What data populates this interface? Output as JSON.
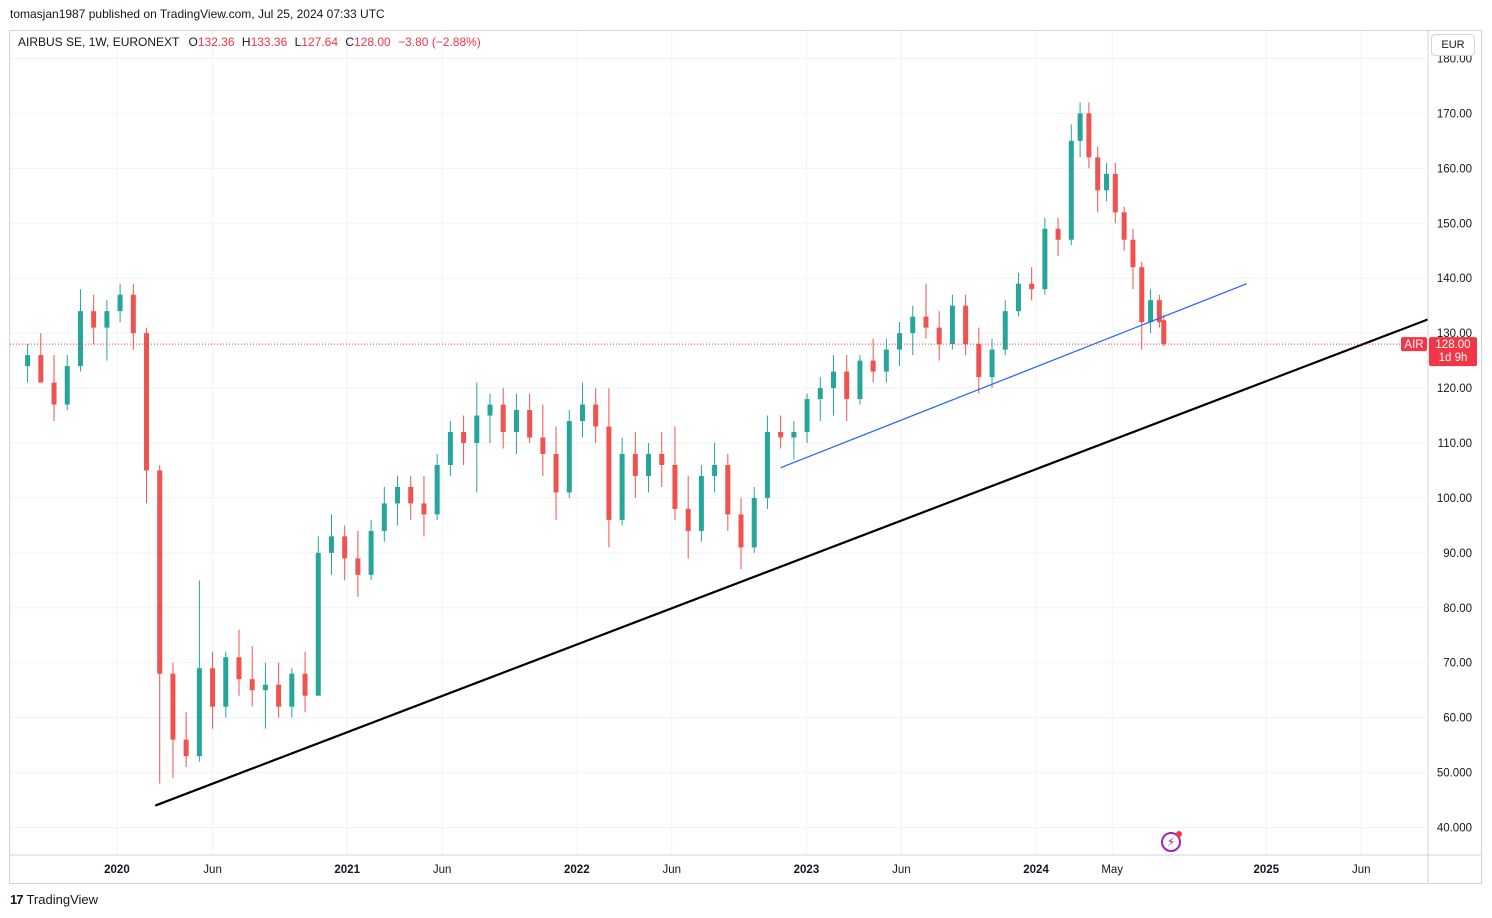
{
  "header": {
    "caption": "tomasjan1987 published on TradingView.com, Jul 25, 2024 07:33 UTC"
  },
  "legend": {
    "symbol": "AIRBUS SE, 1W, EURONEXT",
    "open_label": "O",
    "open": "132.36",
    "high_label": "H",
    "high": "133.36",
    "low_label": "L",
    "low": "127.64",
    "close_label": "C",
    "close": "128.00",
    "change": "−3.80 (−2.88%)"
  },
  "currency": "EUR",
  "price_tag": {
    "ticker": "AIR",
    "price": "128.00",
    "countdown": "1d 9h"
  },
  "brand": {
    "logo": "17",
    "name": "TradingView"
  },
  "colors": {
    "up": "#26a69a",
    "down": "#ef5350",
    "grid": "#f0f3fa",
    "trend_main": "#000000",
    "trend_blue": "#2962ff",
    "last_price": "#f23645"
  },
  "chart_data": {
    "type": "candlestick",
    "symbol": "AIRBUS SE",
    "interval": "1W",
    "ylim": [
      35,
      185
    ],
    "y_ticks": [
      "40.000",
      "50.000",
      "60.00",
      "70.00",
      "80.00",
      "90.00",
      "100.00",
      "110.00",
      "120.00",
      "130.00",
      "140.00",
      "150.00",
      "160.00",
      "170.00",
      "180.00"
    ],
    "x_ticks": [
      {
        "label": "2020",
        "date": "2020-01-01",
        "bold": true
      },
      {
        "label": "Jun",
        "date": "2020-06-01",
        "bold": false
      },
      {
        "label": "2021",
        "date": "2021-01-01",
        "bold": true
      },
      {
        "label": "Jun",
        "date": "2021-06-01",
        "bold": false
      },
      {
        "label": "2022",
        "date": "2022-01-01",
        "bold": true
      },
      {
        "label": "Jun",
        "date": "2022-06-01",
        "bold": false
      },
      {
        "label": "2023",
        "date": "2023-01-01",
        "bold": true
      },
      {
        "label": "Jun",
        "date": "2023-06-01",
        "bold": false
      },
      {
        "label": "2024",
        "date": "2024-01-01",
        "bold": true
      },
      {
        "label": "May",
        "date": "2024-05-01",
        "bold": false
      },
      {
        "label": "2025",
        "date": "2025-01-01",
        "bold": true
      },
      {
        "label": "Jun",
        "date": "2025-06-01",
        "bold": false
      }
    ],
    "xlim": [
      "2019-07-15",
      "2025-09-15"
    ],
    "last_price": 128.0,
    "candles": [
      {
        "d": "2019-08-12",
        "o": 124,
        "h": 128,
        "l": 121,
        "c": 126
      },
      {
        "d": "2019-09-02",
        "o": 126,
        "h": 130,
        "l": 122,
        "c": 121
      },
      {
        "d": "2019-09-23",
        "o": 121,
        "h": 126,
        "l": 114,
        "c": 117
      },
      {
        "d": "2019-10-14",
        "o": 117,
        "h": 126,
        "l": 116,
        "c": 124
      },
      {
        "d": "2019-11-04",
        "o": 124,
        "h": 138,
        "l": 123,
        "c": 134
      },
      {
        "d": "2019-11-25",
        "o": 134,
        "h": 137,
        "l": 128,
        "c": 131
      },
      {
        "d": "2019-12-16",
        "o": 131,
        "h": 136,
        "l": 125,
        "c": 134
      },
      {
        "d": "2020-01-06",
        "o": 134,
        "h": 139,
        "l": 132,
        "c": 137
      },
      {
        "d": "2020-01-27",
        "o": 137,
        "h": 139,
        "l": 127,
        "c": 130
      },
      {
        "d": "2020-02-17",
        "o": 130,
        "h": 131,
        "l": 99,
        "c": 105
      },
      {
        "d": "2020-03-09",
        "o": 105,
        "h": 106,
        "l": 48,
        "c": 68
      },
      {
        "d": "2020-03-30",
        "o": 68,
        "h": 70,
        "l": 49,
        "c": 56
      },
      {
        "d": "2020-04-20",
        "o": 56,
        "h": 61,
        "l": 51,
        "c": 53
      },
      {
        "d": "2020-05-11",
        "o": 53,
        "h": 85,
        "l": 52,
        "c": 69
      },
      {
        "d": "2020-06-01",
        "o": 69,
        "h": 72,
        "l": 58,
        "c": 62
      },
      {
        "d": "2020-06-22",
        "o": 62,
        "h": 72,
        "l": 60,
        "c": 71
      },
      {
        "d": "2020-07-13",
        "o": 71,
        "h": 76,
        "l": 64,
        "c": 67
      },
      {
        "d": "2020-08-03",
        "o": 67,
        "h": 73,
        "l": 62,
        "c": 65
      },
      {
        "d": "2020-08-24",
        "o": 65,
        "h": 70,
        "l": 58,
        "c": 66
      },
      {
        "d": "2020-09-14",
        "o": 66,
        "h": 70,
        "l": 60,
        "c": 62
      },
      {
        "d": "2020-10-05",
        "o": 62,
        "h": 69,
        "l": 60,
        "c": 68
      },
      {
        "d": "2020-10-26",
        "o": 68,
        "h": 72,
        "l": 61,
        "c": 64
      },
      {
        "d": "2020-11-16",
        "o": 64,
        "h": 93,
        "l": 64,
        "c": 90
      },
      {
        "d": "2020-12-07",
        "o": 90,
        "h": 97,
        "l": 86,
        "c": 93
      },
      {
        "d": "2020-12-28",
        "o": 93,
        "h": 95,
        "l": 85,
        "c": 89
      },
      {
        "d": "2021-01-18",
        "o": 89,
        "h": 94,
        "l": 82,
        "c": 86
      },
      {
        "d": "2021-02-08",
        "o": 86,
        "h": 96,
        "l": 85,
        "c": 94
      },
      {
        "d": "2021-03-01",
        "o": 94,
        "h": 102,
        "l": 92,
        "c": 99
      },
      {
        "d": "2021-03-22",
        "o": 99,
        "h": 104,
        "l": 95,
        "c": 102
      },
      {
        "d": "2021-04-12",
        "o": 102,
        "h": 104,
        "l": 96,
        "c": 99
      },
      {
        "d": "2021-05-03",
        "o": 99,
        "h": 104,
        "l": 93,
        "c": 97
      },
      {
        "d": "2021-05-24",
        "o": 97,
        "h": 108,
        "l": 96,
        "c": 106
      },
      {
        "d": "2021-06-14",
        "o": 106,
        "h": 114,
        "l": 104,
        "c": 112
      },
      {
        "d": "2021-07-05",
        "o": 112,
        "h": 115,
        "l": 106,
        "c": 110
      },
      {
        "d": "2021-07-26",
        "o": 110,
        "h": 121,
        "l": 101,
        "c": 115
      },
      {
        "d": "2021-08-16",
        "o": 115,
        "h": 119,
        "l": 110,
        "c": 117
      },
      {
        "d": "2021-09-06",
        "o": 117,
        "h": 120,
        "l": 109,
        "c": 112
      },
      {
        "d": "2021-09-27",
        "o": 112,
        "h": 119,
        "l": 108,
        "c": 116
      },
      {
        "d": "2021-10-18",
        "o": 116,
        "h": 119,
        "l": 110,
        "c": 111
      },
      {
        "d": "2021-11-08",
        "o": 111,
        "h": 117,
        "l": 104,
        "c": 108
      },
      {
        "d": "2021-11-29",
        "o": 108,
        "h": 113,
        "l": 96,
        "c": 101
      },
      {
        "d": "2021-12-20",
        "o": 101,
        "h": 116,
        "l": 100,
        "c": 114
      },
      {
        "d": "2022-01-10",
        "o": 114,
        "h": 121,
        "l": 111,
        "c": 117
      },
      {
        "d": "2022-01-31",
        "o": 117,
        "h": 120,
        "l": 110,
        "c": 113
      },
      {
        "d": "2022-02-21",
        "o": 113,
        "h": 120,
        "l": 91,
        "c": 96
      },
      {
        "d": "2022-03-14",
        "o": 96,
        "h": 111,
        "l": 95,
        "c": 108
      },
      {
        "d": "2022-04-04",
        "o": 108,
        "h": 112,
        "l": 100,
        "c": 104
      },
      {
        "d": "2022-04-25",
        "o": 104,
        "h": 110,
        "l": 101,
        "c": 108
      },
      {
        "d": "2022-05-16",
        "o": 108,
        "h": 112,
        "l": 102,
        "c": 106
      },
      {
        "d": "2022-06-06",
        "o": 106,
        "h": 113,
        "l": 96,
        "c": 98
      },
      {
        "d": "2022-06-27",
        "o": 98,
        "h": 104,
        "l": 89,
        "c": 94
      },
      {
        "d": "2022-07-18",
        "o": 94,
        "h": 106,
        "l": 92,
        "c": 104
      },
      {
        "d": "2022-08-08",
        "o": 104,
        "h": 110,
        "l": 101,
        "c": 106
      },
      {
        "d": "2022-08-29",
        "o": 106,
        "h": 108,
        "l": 94,
        "c": 97
      },
      {
        "d": "2022-09-19",
        "o": 97,
        "h": 100,
        "l": 87,
        "c": 91
      },
      {
        "d": "2022-10-10",
        "o": 91,
        "h": 102,
        "l": 90,
        "c": 100
      },
      {
        "d": "2022-10-31",
        "o": 100,
        "h": 115,
        "l": 98,
        "c": 112
      },
      {
        "d": "2022-11-21",
        "o": 112,
        "h": 115,
        "l": 109,
        "c": 111
      },
      {
        "d": "2022-12-12",
        "o": 111,
        "h": 114,
        "l": 107,
        "c": 112
      },
      {
        "d": "2023-01-02",
        "o": 112,
        "h": 119,
        "l": 110,
        "c": 118
      },
      {
        "d": "2023-01-23",
        "o": 118,
        "h": 122,
        "l": 114,
        "c": 120
      },
      {
        "d": "2023-02-13",
        "o": 120,
        "h": 126,
        "l": 115,
        "c": 123
      },
      {
        "d": "2023-03-06",
        "o": 123,
        "h": 126,
        "l": 114,
        "c": 118
      },
      {
        "d": "2023-03-27",
        "o": 118,
        "h": 126,
        "l": 117,
        "c": 125
      },
      {
        "d": "2023-04-17",
        "o": 125,
        "h": 129,
        "l": 121,
        "c": 123
      },
      {
        "d": "2023-05-08",
        "o": 123,
        "h": 129,
        "l": 121,
        "c": 127
      },
      {
        "d": "2023-05-29",
        "o": 127,
        "h": 132,
        "l": 124,
        "c": 130
      },
      {
        "d": "2023-06-19",
        "o": 130,
        "h": 135,
        "l": 126,
        "c": 133
      },
      {
        "d": "2023-07-10",
        "o": 133,
        "h": 139,
        "l": 129,
        "c": 131
      },
      {
        "d": "2023-07-31",
        "o": 131,
        "h": 134,
        "l": 125,
        "c": 128
      },
      {
        "d": "2023-08-21",
        "o": 128,
        "h": 137,
        "l": 127,
        "c": 135
      },
      {
        "d": "2023-09-11",
        "o": 135,
        "h": 137,
        "l": 126,
        "c": 128
      },
      {
        "d": "2023-10-02",
        "o": 128,
        "h": 131,
        "l": 119,
        "c": 122
      },
      {
        "d": "2023-10-23",
        "o": 122,
        "h": 129,
        "l": 120,
        "c": 127
      },
      {
        "d": "2023-11-13",
        "o": 127,
        "h": 136,
        "l": 126,
        "c": 134
      },
      {
        "d": "2023-12-04",
        "o": 134,
        "h": 141,
        "l": 133,
        "c": 139
      },
      {
        "d": "2023-12-25",
        "o": 139,
        "h": 142,
        "l": 136,
        "c": 138
      },
      {
        "d": "2024-01-15",
        "o": 138,
        "h": 151,
        "l": 137,
        "c": 149
      },
      {
        "d": "2024-02-05",
        "o": 149,
        "h": 151,
        "l": 144,
        "c": 147
      },
      {
        "d": "2024-02-26",
        "o": 147,
        "h": 168,
        "l": 146,
        "c": 165
      },
      {
        "d": "2024-03-11",
        "o": 165,
        "h": 172,
        "l": 162,
        "c": 170
      },
      {
        "d": "2024-03-25",
        "o": 170,
        "h": 172,
        "l": 160,
        "c": 162
      },
      {
        "d": "2024-04-08",
        "o": 162,
        "h": 164,
        "l": 152,
        "c": 156
      },
      {
        "d": "2024-04-22",
        "o": 156,
        "h": 161,
        "l": 154,
        "c": 159
      },
      {
        "d": "2024-05-06",
        "o": 159,
        "h": 161,
        "l": 150,
        "c": 152
      },
      {
        "d": "2024-05-20",
        "o": 152,
        "h": 153,
        "l": 145,
        "c": 147
      },
      {
        "d": "2024-06-03",
        "o": 147,
        "h": 149,
        "l": 138,
        "c": 142
      },
      {
        "d": "2024-06-17",
        "o": 142,
        "h": 143,
        "l": 127,
        "c": 132
      },
      {
        "d": "2024-07-01",
        "o": 132,
        "h": 138,
        "l": 130,
        "c": 136
      },
      {
        "d": "2024-07-15",
        "o": 136,
        "h": 137,
        "l": 131,
        "c": 132
      },
      {
        "d": "2024-07-22",
        "o": 132.36,
        "h": 133.36,
        "l": 127.64,
        "c": 128.0
      }
    ],
    "trendlines": [
      {
        "name": "main",
        "from": {
          "d": "2020-03-02",
          "y": 44
        },
        "to": {
          "d": "2025-09-15",
          "y": 132.5
        }
      },
      {
        "name": "blue",
        "from": {
          "d": "2022-11-21",
          "y": 105.5
        },
        "to": {
          "d": "2024-12-01",
          "y": 139
        }
      }
    ]
  }
}
